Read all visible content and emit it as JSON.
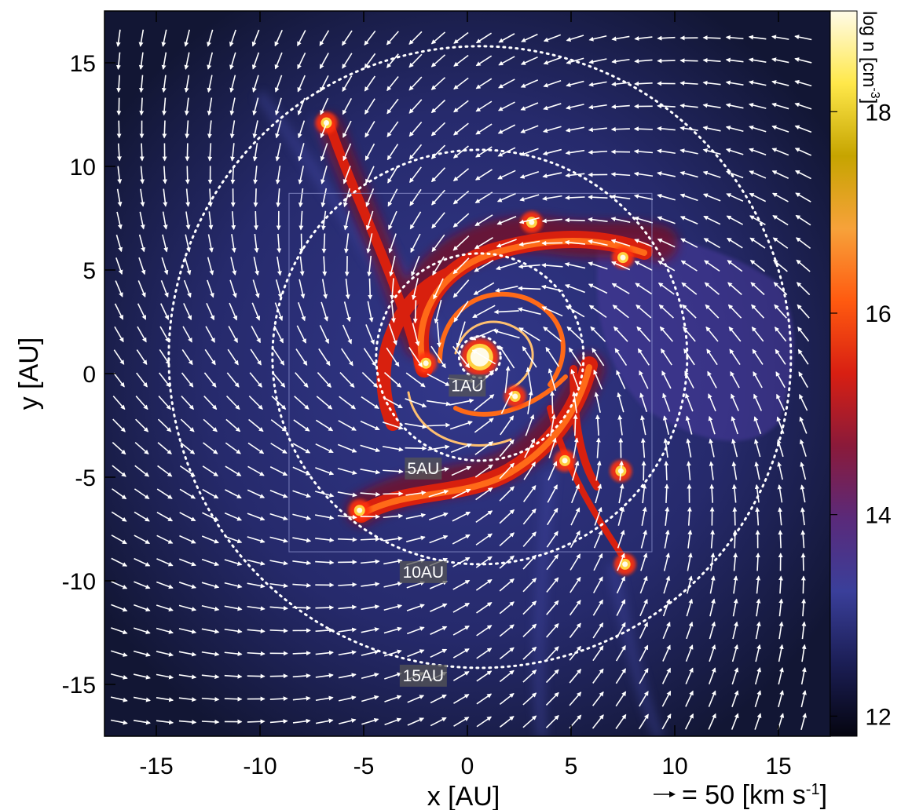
{
  "chart_data": {
    "type": "heatmap",
    "xlabel": "x [AU]",
    "ylabel": "y [AU]",
    "xlim": [
      -17.5,
      17.5
    ],
    "ylim": [
      -17.5,
      17.5
    ],
    "xticks": [
      -15,
      -10,
      -5,
      0,
      5,
      10,
      15
    ],
    "yticks": [
      -15,
      -10,
      -5,
      0,
      5,
      10,
      15
    ],
    "xtick_labels": [
      "-15",
      "-10",
      "-5",
      "0",
      "5",
      "10",
      "15"
    ],
    "ytick_labels": [
      "-15",
      "-10",
      "-5",
      "0",
      "5",
      "10",
      "15"
    ],
    "colorbar": {
      "label": "log n [cm",
      "label_sup": "-3",
      "label_end": "]",
      "range": [
        11.8,
        19.0
      ],
      "ticks": [
        12,
        14,
        16,
        18
      ],
      "tick_labels": [
        "12",
        "14",
        "16",
        "18"
      ],
      "colormap": [
        "#050510",
        "#1b1e55",
        "#3a3f9a",
        "#5a2a7a",
        "#8a1a3a",
        "#d81f12",
        "#ff5a10",
        "#f7a23a",
        "#c6a400",
        "#ffe84a",
        "#fffbe8"
      ]
    },
    "circles": [
      {
        "label": "1AU",
        "radius_au": 1,
        "center": [
          0.6,
          0.8
        ]
      },
      {
        "label": "5AU",
        "radius_au": 5,
        "center": [
          0.6,
          0.8
        ]
      },
      {
        "label": "10AU",
        "radius_au": 10,
        "center": [
          0.6,
          0.8
        ]
      },
      {
        "label": "15AU",
        "radius_au": 15,
        "center": [
          0.6,
          0.8
        ]
      }
    ],
    "zoom_box": {
      "x": [
        -8.6,
        8.9
      ],
      "y": [
        -8.6,
        8.7
      ]
    },
    "sink_particles": [
      {
        "x": -6.8,
        "y": 12.1
      },
      {
        "x": 3.1,
        "y": 7.3
      },
      {
        "x": 7.5,
        "y": 5.6
      },
      {
        "x": 0.6,
        "y": 0.8
      },
      {
        "x": -2.0,
        "y": 0.5
      },
      {
        "x": 2.3,
        "y": -1.1
      },
      {
        "x": 4.7,
        "y": -4.2
      },
      {
        "x": 7.4,
        "y": -4.7
      },
      {
        "x": -5.2,
        "y": -6.6
      },
      {
        "x": 7.6,
        "y": -9.2
      }
    ],
    "vector_scale": {
      "text": "= 50 [km s",
      "sup": "-1",
      "end": "]",
      "speed_kms": 50
    }
  }
}
